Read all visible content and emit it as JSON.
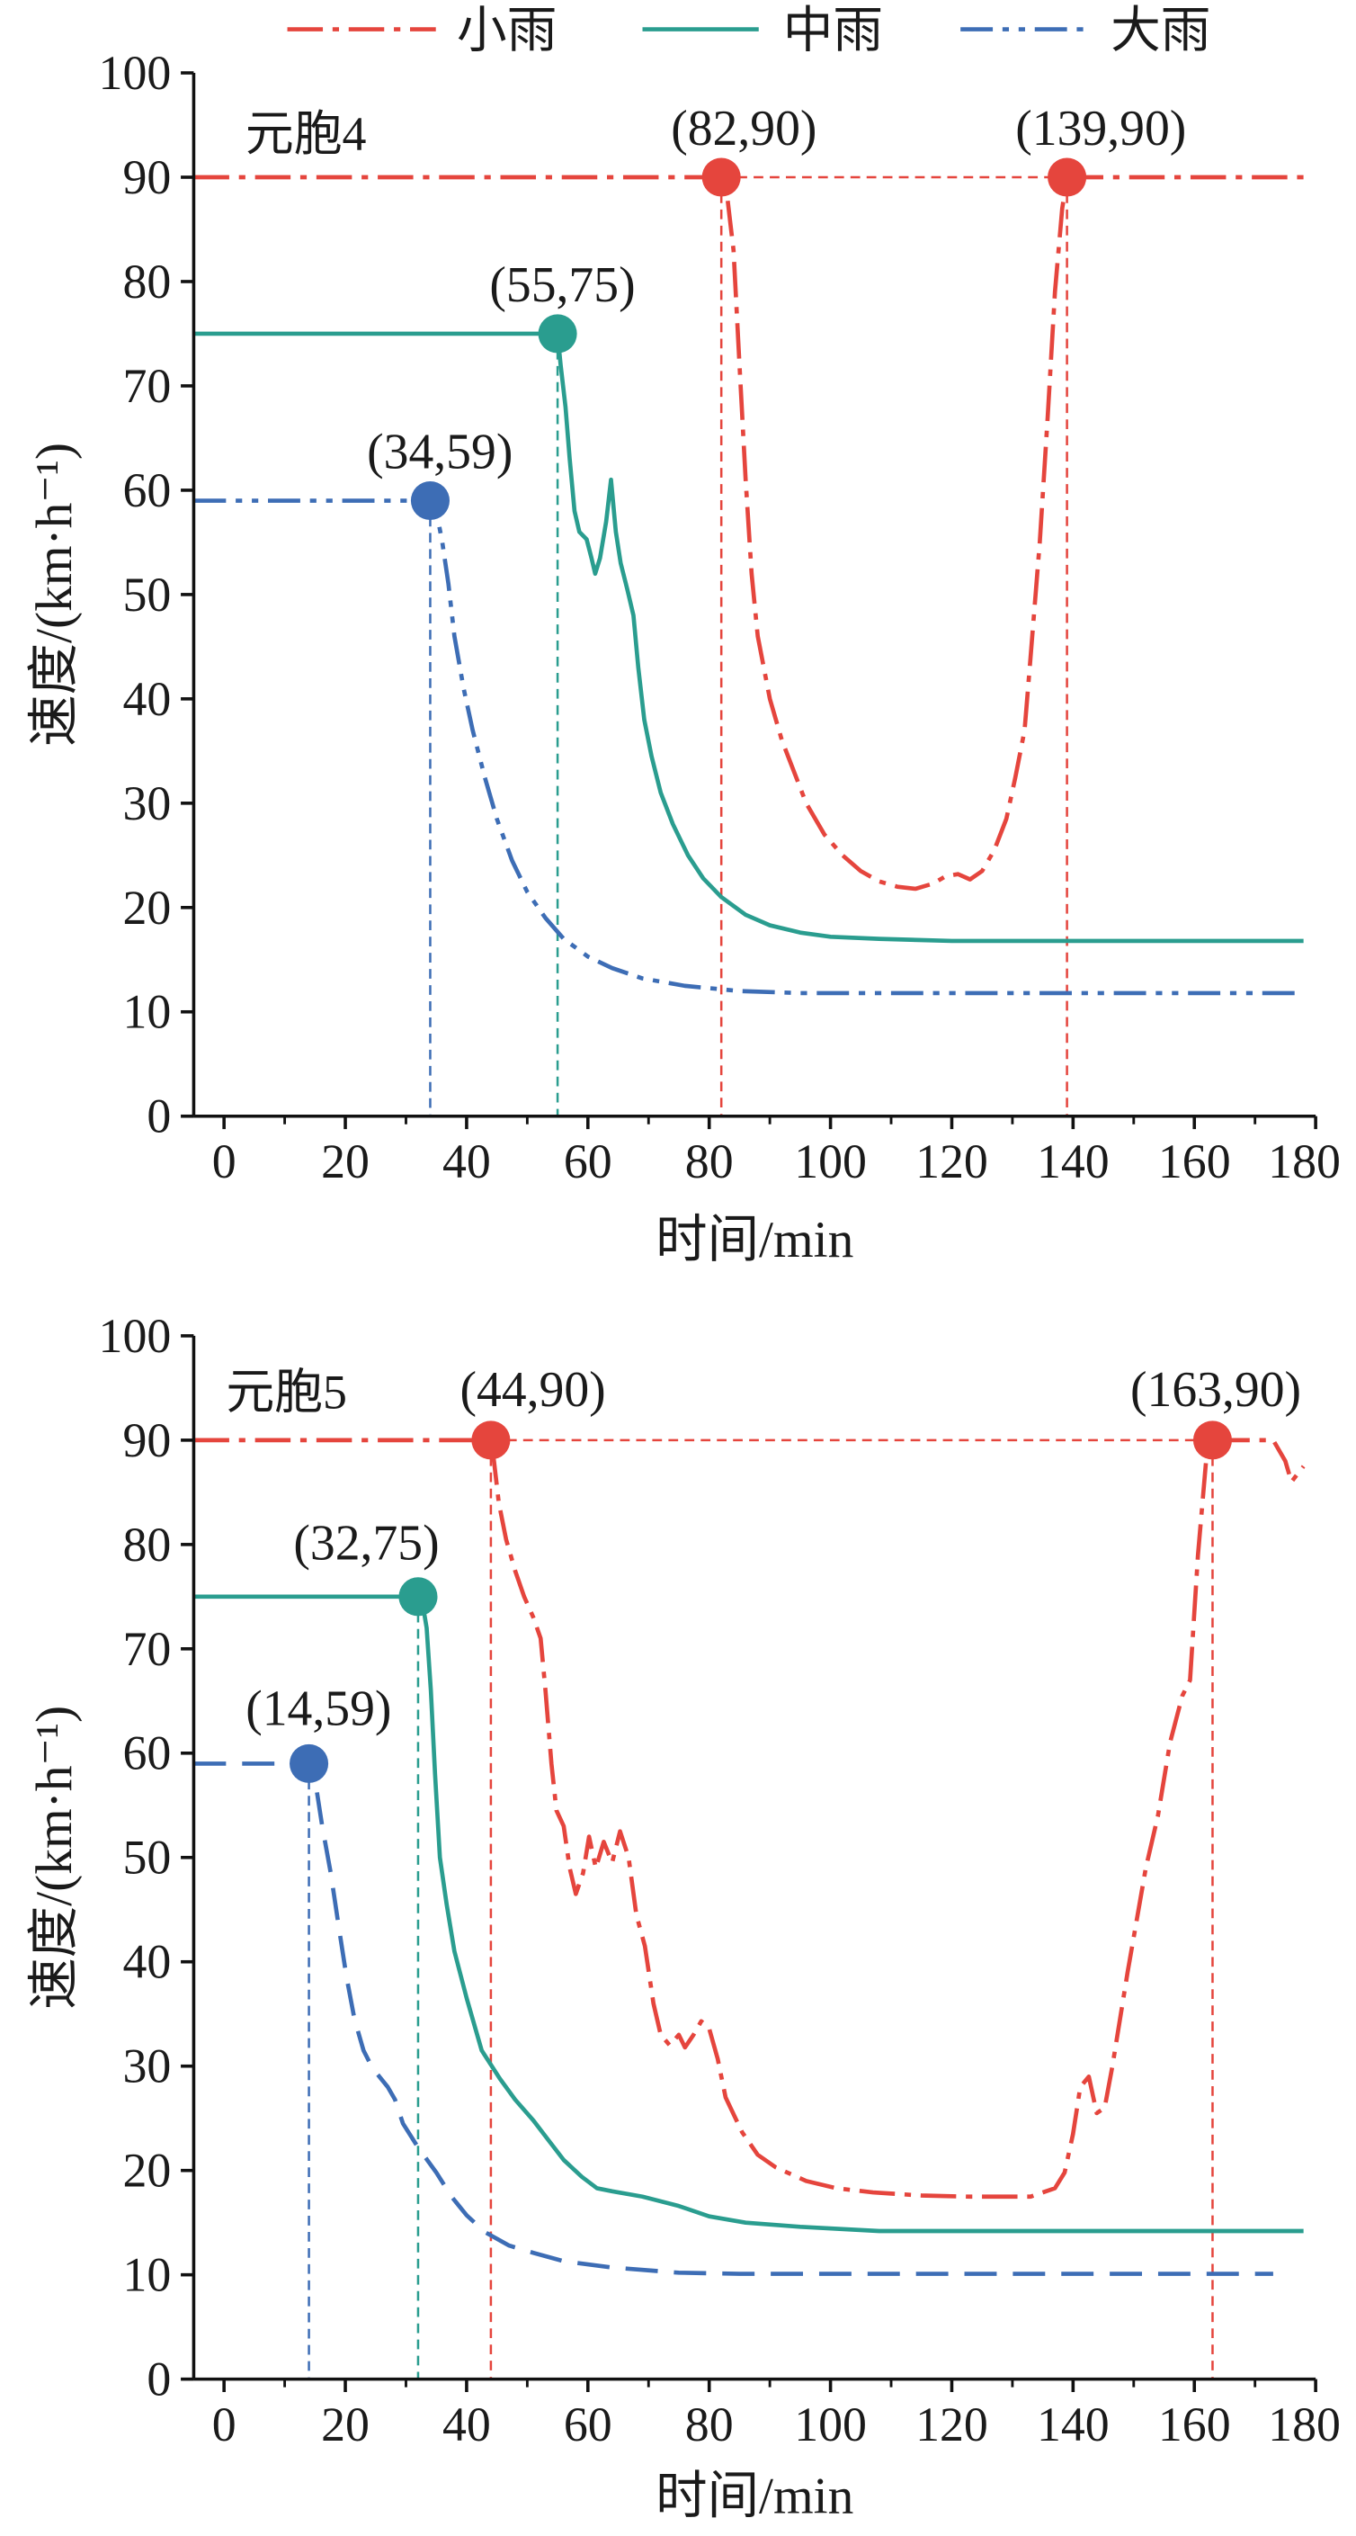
{
  "legend": [
    {
      "label": "小雨",
      "color": "#e5453d"
    },
    {
      "label": "中雨",
      "color": "#2a9d8f"
    },
    {
      "label": "大雨",
      "color": "#3d6db5"
    }
  ],
  "chart_data": [
    {
      "type": "line",
      "panel_label": "元胞4",
      "xlabel": "时间/min",
      "ylabel": "速度/(km·h⁻¹)",
      "xlim": [
        -5,
        180
      ],
      "ylim": [
        0,
        100
      ],
      "xticks": [
        0,
        20,
        40,
        60,
        80,
        100,
        120,
        140,
        160,
        180
      ],
      "yticks": [
        0,
        10,
        20,
        30,
        40,
        50,
        60,
        70,
        80,
        90,
        100
      ],
      "grid": false,
      "legend_position": "top",
      "series": [
        {
          "name": "小雨",
          "color": "#e5453d",
          "points": [
            [
              -5,
              90
            ],
            [
              82,
              90
            ],
            [
              83,
              88
            ],
            [
              84,
              83
            ],
            [
              85,
              72
            ],
            [
              86,
              61
            ],
            [
              87,
              52
            ],
            [
              88,
              46
            ],
            [
              90,
              40
            ],
            [
              92,
              36
            ],
            [
              94,
              33
            ],
            [
              96,
              30
            ],
            [
              99,
              27
            ],
            [
              102,
              25
            ],
            [
              105,
              23.5
            ],
            [
              108,
              22.5
            ],
            [
              111,
              22
            ],
            [
              114,
              21.8
            ],
            [
              117,
              22.3
            ],
            [
              119,
              23
            ],
            [
              121,
              23.2
            ],
            [
              123,
              22.7
            ],
            [
              125,
              23.5
            ],
            [
              127,
              25.5
            ],
            [
              129,
              28.5
            ],
            [
              130.5,
              32.5
            ],
            [
              132,
              37
            ],
            [
              133,
              44
            ],
            [
              134.5,
              55
            ],
            [
              135.8,
              67
            ],
            [
              137,
              79
            ],
            [
              138.2,
              87
            ],
            [
              139,
              90
            ],
            [
              178,
              90
            ]
          ]
        },
        {
          "name": "中雨",
          "color": "#2a9d8f",
          "points": [
            [
              -5,
              75
            ],
            [
              55,
              75
            ],
            [
              55.5,
              72
            ],
            [
              56.3,
              68
            ],
            [
              57,
              63
            ],
            [
              57.8,
              58
            ],
            [
              58.6,
              56
            ],
            [
              59.8,
              55.3
            ],
            [
              60.6,
              53.5
            ],
            [
              61.2,
              52
            ],
            [
              62,
              53.5
            ],
            [
              63,
              57
            ],
            [
              63.8,
              61
            ],
            [
              64.6,
              56
            ],
            [
              65.4,
              53
            ],
            [
              66.5,
              50.5
            ],
            [
              67.5,
              48
            ],
            [
              68.3,
              43
            ],
            [
              69.3,
              38
            ],
            [
              70.5,
              34.5
            ],
            [
              72,
              31
            ],
            [
              74,
              28
            ],
            [
              76.5,
              25
            ],
            [
              79,
              22.8
            ],
            [
              82,
              21
            ],
            [
              86,
              19.3
            ],
            [
              90,
              18.3
            ],
            [
              95,
              17.6
            ],
            [
              100,
              17.2
            ],
            [
              108,
              17
            ],
            [
              120,
              16.8
            ],
            [
              150,
              16.8
            ],
            [
              178,
              16.8
            ]
          ]
        },
        {
          "name": "大雨",
          "color": "#3d6db5",
          "points": [
            [
              -5,
              59
            ],
            [
              34,
              59
            ],
            [
              35,
              58
            ],
            [
              36,
              55
            ],
            [
              37,
              51
            ],
            [
              38,
              46
            ],
            [
              39.5,
              41
            ],
            [
              41,
              37
            ],
            [
              43,
              32.5
            ],
            [
              45,
              28.5
            ],
            [
              47.5,
              24.5
            ],
            [
              50,
              21.5
            ],
            [
              53,
              19
            ],
            [
              56,
              17
            ],
            [
              60,
              15.3
            ],
            [
              64,
              14.2
            ],
            [
              69,
              13.2
            ],
            [
              76,
              12.5
            ],
            [
              85,
              12
            ],
            [
              95,
              11.8
            ],
            [
              120,
              11.8
            ],
            [
              150,
              11.8
            ],
            [
              178,
              11.8
            ]
          ]
        }
      ],
      "annotations": [
        {
          "text": "(82,90)",
          "x": 82,
          "y": 90,
          "series": "小雨"
        },
        {
          "text": "(139,90)",
          "x": 139,
          "y": 90,
          "series": "小雨"
        },
        {
          "text": "(55,75)",
          "x": 55,
          "y": 75,
          "series": "中雨"
        },
        {
          "text": "(34,59)",
          "x": 34,
          "y": 59,
          "series": "大雨"
        }
      ]
    },
    {
      "type": "line",
      "panel_label": "元胞5",
      "xlabel": "时间/min",
      "ylabel": "速度/(km·h⁻¹)",
      "xlim": [
        -5,
        180
      ],
      "ylim": [
        0,
        100
      ],
      "xticks": [
        0,
        20,
        40,
        60,
        80,
        100,
        120,
        140,
        160,
        180
      ],
      "yticks": [
        0,
        10,
        20,
        30,
        40,
        50,
        60,
        70,
        80,
        90,
        100
      ],
      "grid": false,
      "series": [
        {
          "name": "小雨",
          "color": "#e5453d",
          "points": [
            [
              -5,
              90
            ],
            [
              44,
              90
            ],
            [
              44.5,
              88
            ],
            [
              45.3,
              84
            ],
            [
              46.5,
              80.5
            ],
            [
              48,
              77.5
            ],
            [
              49.5,
              75
            ],
            [
              51,
              73
            ],
            [
              52.2,
              71
            ],
            [
              53,
              66
            ],
            [
              54,
              59
            ],
            [
              54.8,
              54.5
            ],
            [
              56,
              53
            ],
            [
              57,
              49
            ],
            [
              58,
              46.5
            ],
            [
              59.2,
              48.5
            ],
            [
              60.2,
              52
            ],
            [
              61.3,
              49
            ],
            [
              62.6,
              51.5
            ],
            [
              64,
              49.5
            ],
            [
              65.3,
              52.5
            ],
            [
              66.7,
              50
            ],
            [
              68,
              44.5
            ],
            [
              69.4,
              41.5
            ],
            [
              70.8,
              36
            ],
            [
              72,
              33
            ],
            [
              73.5,
              32
            ],
            [
              75,
              33
            ],
            [
              76,
              31.8
            ],
            [
              77.4,
              33
            ],
            [
              78.7,
              34.3
            ],
            [
              80,
              33.6
            ],
            [
              81.4,
              30.7
            ],
            [
              82.7,
              27
            ],
            [
              85.4,
              23.7
            ],
            [
              88,
              21.5
            ],
            [
              91,
              20.3
            ],
            [
              96,
              19
            ],
            [
              101,
              18.3
            ],
            [
              107,
              17.9
            ],
            [
              115,
              17.6
            ],
            [
              123,
              17.5
            ],
            [
              133,
              17.5
            ],
            [
              137,
              18.3
            ],
            [
              138.6,
              19.8
            ],
            [
              140,
              23.5
            ],
            [
              141.2,
              28
            ],
            [
              142.6,
              29
            ],
            [
              143.9,
              25.5
            ],
            [
              145.2,
              26
            ],
            [
              146.5,
              30
            ],
            [
              149,
              39
            ],
            [
              152,
              49
            ],
            [
              154,
              54
            ],
            [
              156,
              61
            ],
            [
              158,
              65.5
            ],
            [
              159.3,
              67
            ],
            [
              160.6,
              79
            ],
            [
              162,
              88.5
            ],
            [
              163,
              90
            ],
            [
              173,
              90
            ],
            [
              175,
              88
            ],
            [
              176,
              86
            ],
            [
              178,
              87.5
            ]
          ]
        },
        {
          "name": "中雨",
          "color": "#2a9d8f",
          "points": [
            [
              -5,
              75
            ],
            [
              32,
              75
            ],
            [
              32.7,
              74.5
            ],
            [
              33.4,
              72
            ],
            [
              34.1,
              66
            ],
            [
              34.8,
              58
            ],
            [
              35.6,
              50
            ],
            [
              36.7,
              45.5
            ],
            [
              38,
              41
            ],
            [
              40,
              36.5
            ],
            [
              42.5,
              31.5
            ],
            [
              45.5,
              28.8
            ],
            [
              48,
              26.8
            ],
            [
              51,
              24.8
            ],
            [
              53.5,
              22.9
            ],
            [
              56,
              21
            ],
            [
              59,
              19.4
            ],
            [
              61.5,
              18.3
            ],
            [
              64,
              18
            ],
            [
              69,
              17.5
            ],
            [
              75,
              16.6
            ],
            [
              80,
              15.6
            ],
            [
              86,
              15
            ],
            [
              95,
              14.6
            ],
            [
              108,
              14.2
            ],
            [
              125,
              14.2
            ],
            [
              150,
              14.2
            ],
            [
              178,
              14.2
            ]
          ]
        },
        {
          "name": "大雨",
          "color": "#3d6db5",
          "points": [
            [
              -5,
              59
            ],
            [
              14,
              59
            ],
            [
              15,
              57.5
            ],
            [
              16.2,
              53
            ],
            [
              17.6,
              48.5
            ],
            [
              19,
              43
            ],
            [
              20.2,
              38.5
            ],
            [
              21.5,
              34.5
            ],
            [
              23,
              31.5
            ],
            [
              24.5,
              29.8
            ],
            [
              27,
              28
            ],
            [
              28.2,
              26.8
            ],
            [
              29.5,
              24.5
            ],
            [
              32,
              22.2
            ],
            [
              35,
              19.8
            ],
            [
              37.5,
              17.5
            ],
            [
              40,
              15.7
            ],
            [
              43,
              14.1
            ],
            [
              47,
              12.8
            ],
            [
              51,
              12.1
            ],
            [
              56,
              11.3
            ],
            [
              64,
              10.7
            ],
            [
              75,
              10.2
            ],
            [
              85,
              10.1
            ],
            [
              100,
              10.1
            ],
            [
              130,
              10.1
            ],
            [
              173,
              10.1
            ]
          ]
        }
      ],
      "annotations": [
        {
          "text": "(44,90)",
          "x": 44,
          "y": 90,
          "series": "小雨"
        },
        {
          "text": "(163,90)",
          "x": 163,
          "y": 90,
          "series": "小雨"
        },
        {
          "text": "(32,75)",
          "x": 32,
          "y": 75,
          "series": "中雨"
        },
        {
          "text": "(14,59)",
          "x": 14,
          "y": 59,
          "series": "大雨"
        }
      ]
    }
  ]
}
